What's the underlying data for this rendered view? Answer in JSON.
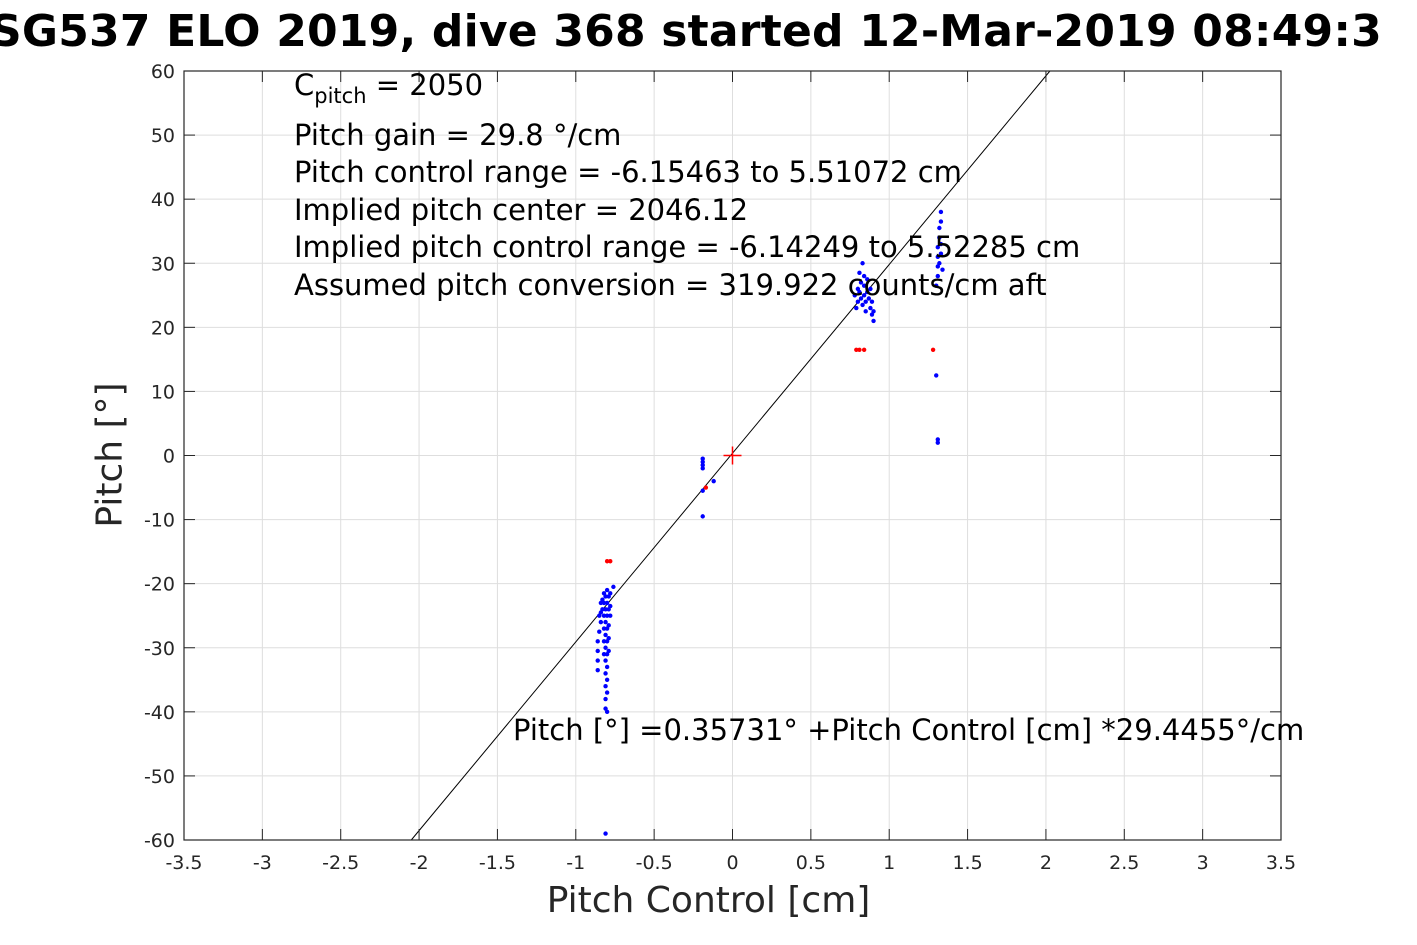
{
  "title": "SG537 ELO 2019, dive 368 started 12-Mar-2019 08:49:3",
  "annotations": {
    "c_pitch_prefix": "C",
    "c_pitch_sub": "pitch",
    "c_pitch_value": " = 2050",
    "pitch_gain": "Pitch gain = 29.8 °/cm",
    "pitch_control_range": "Pitch control range = -6.15463 to 5.51072 cm",
    "implied_center": "Implied pitch center = 2046.12",
    "implied_range": "Implied pitch control range = -6.14249 to 5.52285 cm",
    "assumed_conversion": "Assumed pitch conversion = 319.922 counts/cm aft",
    "fit_equation": "Pitch [°] =0.35731° +Pitch Control [cm] *29.4455°/cm"
  },
  "chart_data": {
    "type": "scatter",
    "xlabel": "Pitch Control [cm]",
    "ylabel": "Pitch [°]",
    "xlim": [
      -3.5,
      3.5
    ],
    "ylim": [
      -60,
      60
    ],
    "xticks": [
      -3.5,
      -3,
      -2.5,
      -2,
      -1.5,
      -1,
      -0.5,
      0,
      0.5,
      1,
      1.5,
      2,
      2.5,
      3,
      3.5
    ],
    "yticks": [
      60,
      50,
      40,
      30,
      20,
      10,
      0,
      -10,
      -20,
      -30,
      -40,
      -50,
      -60
    ],
    "xtick_labels": [
      "-3.5",
      "-3",
      "-2.5",
      "-2",
      "-1.5",
      "-1",
      "-0.5",
      "0",
      "0.5",
      "1",
      "1.5",
      "2",
      "2.5",
      "3",
      "3.5"
    ],
    "ytick_labels": [
      "60",
      "50",
      "40",
      "30",
      "20",
      "10",
      "0",
      "-10",
      "-20",
      "-30",
      "-40",
      "-50",
      "-60"
    ],
    "grid": true,
    "fit_line": {
      "intercept": 0.35731,
      "slope": 29.4455,
      "color": "#000000"
    },
    "center_marker": {
      "x": 0,
      "y": 0,
      "color": "#ff0000"
    },
    "series": [
      {
        "color": "#0000ff",
        "points": [
          [
            -0.84,
            -23
          ],
          [
            -0.84,
            -24.5
          ],
          [
            -0.84,
            -26
          ],
          [
            -0.85,
            -27.5
          ],
          [
            -0.86,
            -29
          ],
          [
            -0.86,
            -30.5
          ],
          [
            -0.86,
            -32
          ],
          [
            -0.86,
            -33.5
          ],
          [
            -0.85,
            -25
          ],
          [
            -0.83,
            -22.5
          ],
          [
            -0.83,
            -24
          ],
          [
            -0.82,
            -21.5
          ],
          [
            -0.82,
            -23
          ],
          [
            -0.82,
            -25
          ],
          [
            -0.82,
            -27
          ],
          [
            -0.82,
            -29
          ],
          [
            -0.82,
            -31
          ],
          [
            -0.81,
            -22
          ],
          [
            -0.81,
            -24
          ],
          [
            -0.81,
            -26
          ],
          [
            -0.81,
            -28
          ],
          [
            -0.81,
            -30
          ],
          [
            -0.81,
            -32
          ],
          [
            -0.81,
            -34
          ],
          [
            -0.81,
            -36
          ],
          [
            -0.81,
            -38
          ],
          [
            -0.81,
            -39.5
          ],
          [
            -0.8,
            -21
          ],
          [
            -0.8,
            -23
          ],
          [
            -0.8,
            -25
          ],
          [
            -0.8,
            -27
          ],
          [
            -0.8,
            -29
          ],
          [
            -0.8,
            -31
          ],
          [
            -0.8,
            -33
          ],
          [
            -0.8,
            -35
          ],
          [
            -0.8,
            -37
          ],
          [
            -0.8,
            -40
          ],
          [
            -0.79,
            -22
          ],
          [
            -0.79,
            -24
          ],
          [
            -0.79,
            -26.5
          ],
          [
            -0.79,
            -28.5
          ],
          [
            -0.79,
            -30.5
          ],
          [
            -0.78,
            -21.5
          ],
          [
            -0.78,
            -23.5
          ],
          [
            -0.78,
            -25
          ],
          [
            -0.76,
            -20.5
          ],
          [
            -0.81,
            -59
          ],
          [
            -0.19,
            -0.5
          ],
          [
            -0.19,
            -1
          ],
          [
            -0.19,
            -1.5
          ],
          [
            -0.19,
            -2
          ],
          [
            -0.19,
            -5.5
          ],
          [
            -0.19,
            -9.5
          ],
          [
            -0.12,
            -4
          ],
          [
            0.78,
            25
          ],
          [
            0.79,
            23
          ],
          [
            0.8,
            24
          ],
          [
            0.8,
            26
          ],
          [
            0.81,
            25.5
          ],
          [
            0.82,
            24.5
          ],
          [
            0.82,
            27
          ],
          [
            0.83,
            23.5
          ],
          [
            0.84,
            25
          ],
          [
            0.84,
            26.5
          ],
          [
            0.84,
            28
          ],
          [
            0.85,
            24
          ],
          [
            0.85,
            22.5
          ],
          [
            0.86,
            25.5
          ],
          [
            0.86,
            27.5
          ],
          [
            0.87,
            24.5
          ],
          [
            0.88,
            26
          ],
          [
            0.88,
            23
          ],
          [
            0.89,
            22
          ],
          [
            0.89,
            24
          ],
          [
            0.9,
            21
          ],
          [
            0.9,
            22.5
          ],
          [
            0.83,
            30
          ],
          [
            0.81,
            28.5
          ],
          [
            1.31,
            28
          ],
          [
            1.31,
            29.5
          ],
          [
            1.31,
            31
          ],
          [
            1.31,
            32.5
          ],
          [
            1.32,
            34
          ],
          [
            1.32,
            35.5
          ],
          [
            1.32,
            30
          ],
          [
            1.33,
            31.5
          ],
          [
            1.33,
            33
          ],
          [
            1.33,
            36.5
          ],
          [
            1.33,
            38
          ],
          [
            1.34,
            29
          ],
          [
            1.3,
            12.5
          ],
          [
            1.31,
            2
          ],
          [
            1.31,
            2.5
          ],
          [
            1.3,
            26.5
          ]
        ]
      },
      {
        "color": "#ff0000",
        "points": [
          [
            -0.8,
            -16.5
          ],
          [
            -0.78,
            -16.5
          ],
          [
            -0.17,
            -5
          ],
          [
            0.79,
            16.5
          ],
          [
            0.81,
            16.5
          ],
          [
            0.84,
            16.5
          ],
          [
            1.28,
            16.5
          ]
        ]
      }
    ]
  }
}
